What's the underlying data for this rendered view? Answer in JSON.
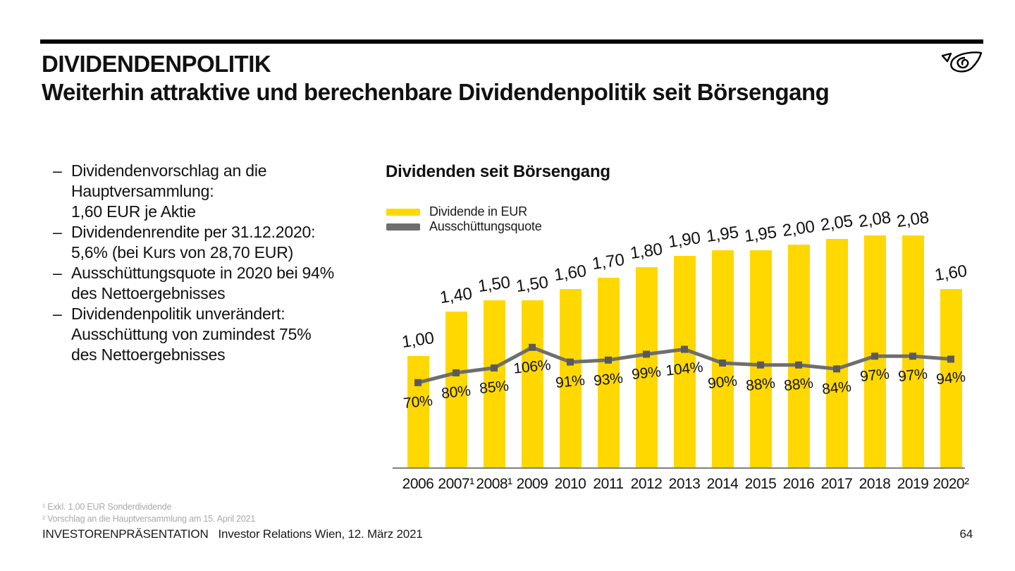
{
  "slide": {
    "title": "DIVIDENDENPOLITIK",
    "subtitle": "Weiterhin attraktive und berechenbare Dividendenpolitik seit Börsengang",
    "footer_left": "INVESTORENPRÄSENTATION",
    "footer_right": "Investor Relations Wien, 12. März 2021",
    "page_number": "64"
  },
  "logo": {
    "icon": "post-horn-logo"
  },
  "bullets": {
    "marker": "–",
    "items": [
      {
        "text": "Dividendenvorschlag an die\nHauptversammlung:\n1,60 EUR je Aktie"
      },
      {
        "text": "Dividendenrendite per 31.12.2020:\n5,6% (bei Kurs von 28,70 EUR)"
      },
      {
        "text": "Ausschüttungsquote in 2020 bei 94%\ndes Nettoergebnisses"
      },
      {
        "text": "Dividendenpolitik unverändert:\nAusschüttung von zumindest 75%\ndes Nettoergebnisses"
      }
    ]
  },
  "chart_data": {
    "type": "bar",
    "title": "Dividenden seit Börsengang",
    "categories": [
      "2006",
      "2007",
      "2008",
      "2009",
      "2010",
      "2011",
      "2012",
      "2013",
      "2014",
      "2015",
      "2016",
      "2017",
      "2018",
      "2019",
      "2020"
    ],
    "category_labels": [
      "2006",
      "2007¹",
      "2008¹",
      "2009",
      "2010",
      "2011",
      "2012",
      "2013",
      "2014",
      "2015",
      "2016",
      "2017",
      "2018",
      "2019",
      "2020²"
    ],
    "series": [
      {
        "name": "Dividende in EUR",
        "type": "bar",
        "color": "#FFD800",
        "values": [
          1.0,
          1.4,
          1.5,
          1.5,
          1.6,
          1.7,
          1.8,
          1.9,
          1.95,
          1.95,
          2.0,
          2.05,
          2.08,
          2.08,
          1.6
        ],
        "labels": [
          "1,00",
          "1,40",
          "1,50",
          "1,50",
          "1,60",
          "1,70",
          "1,80",
          "1,90",
          "1,95",
          "1,95",
          "2,00",
          "2,05",
          "2,08",
          "2,08",
          "1,60"
        ]
      },
      {
        "name": "Ausschüttungsquote",
        "type": "line",
        "color": "#6E6E6E",
        "marker_color": "#5A5A5A",
        "values": [
          70,
          80,
          85,
          106,
          91,
          93,
          99,
          104,
          90,
          88,
          88,
          84,
          97,
          97,
          94
        ],
        "labels": [
          "70%",
          "80%",
          "85%",
          "106%",
          "91%",
          "93%",
          "99%",
          "104%",
          "90%",
          "88%",
          "88%",
          "84%",
          "97%",
          "97%",
          "94%"
        ]
      }
    ],
    "axis_color": "#808080",
    "grid": false,
    "legend_position": "top-left"
  },
  "footnotes": {
    "line1": "¹ Exkl. 1,00 EUR Sonderdividende",
    "line2": "² Vorschlag an die Hauptversammlung am 15. April 2021"
  }
}
